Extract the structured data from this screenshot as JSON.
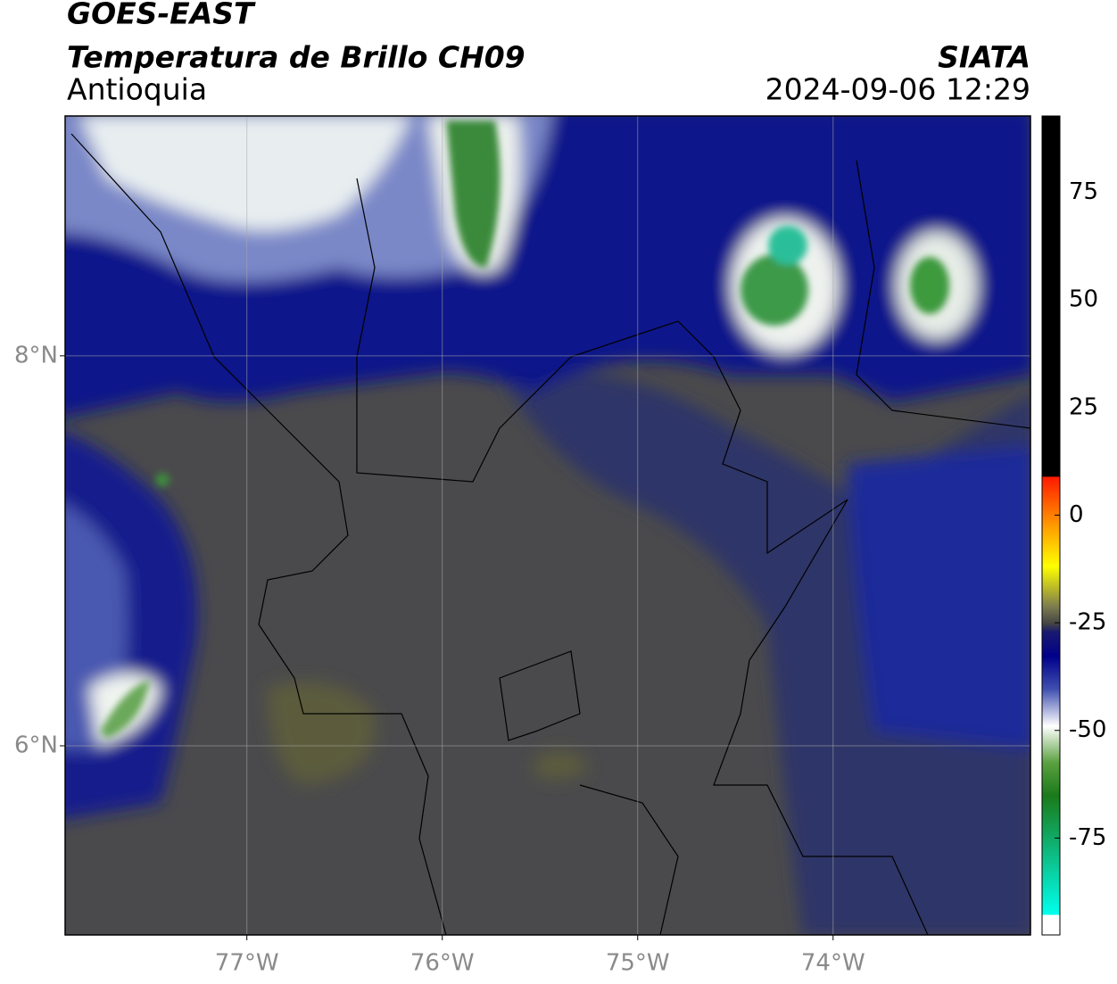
{
  "header": {
    "title": "GOES-EAST",
    "product": "Temperatura de Brillo CH09",
    "source": "SIATA",
    "region": "Antioquia",
    "datetime": "2024-09-06 12:29"
  },
  "map": {
    "xlim": [
      -77.93,
      -72.99
    ],
    "ylim": [
      5.03,
      9.23
    ],
    "lat_ticks": [
      {
        "value": 8,
        "label": "8°N"
      },
      {
        "value": 6,
        "label": "6°N"
      }
    ],
    "lon_ticks": [
      {
        "value": -77,
        "label": "77°W"
      },
      {
        "value": -76,
        "label": "76°W"
      },
      {
        "value": -75,
        "label": "75°W"
      },
      {
        "value": -74,
        "label": "74°W"
      }
    ],
    "grid": true
  },
  "colorbar": {
    "lim": [
      -97.5,
      92.7
    ],
    "ticks": [
      75,
      50,
      25,
      0,
      -25,
      -50,
      -75
    ]
  }
}
